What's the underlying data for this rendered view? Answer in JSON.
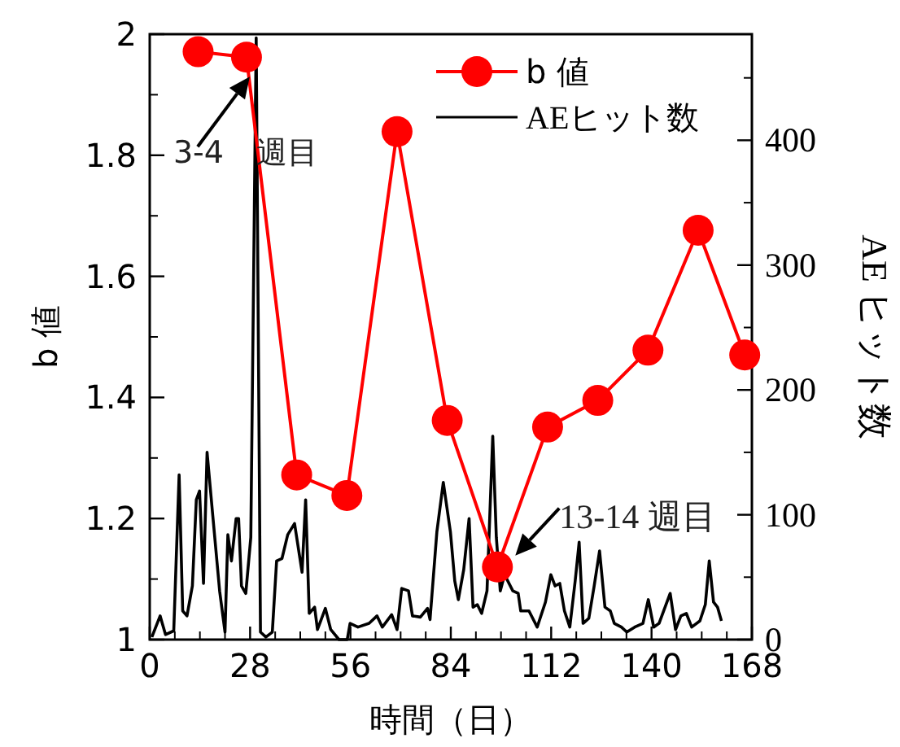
{
  "chart_data": {
    "type": "line",
    "xlabel": "時間（日）",
    "ylabel": "b 値",
    "y2label": "AE ヒット数",
    "xlim": [
      0,
      168
    ],
    "xticks": [
      0,
      28,
      56,
      84,
      112,
      140,
      168
    ],
    "ylim": [
      1,
      2
    ],
    "yticks": [
      {
        "value": 1,
        "label": "1"
      },
      1.2,
      1.4,
      1.6,
      1.8,
      {
        "value": 2,
        "label": "2"
      }
    ],
    "y2lim": [
      0,
      485
    ],
    "y2ticks": [
      0,
      100,
      200,
      300,
      400
    ],
    "legend": "top right",
    "annotations": [
      {
        "text": "3-4 週目",
        "x": 27,
        "y": 1.962
      },
      {
        "text": "13-14 週目",
        "x": 97,
        "y": 1.12
      }
    ],
    "series": [
      {
        "name": "b 値",
        "color": "#ff0000",
        "marker": "circle",
        "x": [
          13.5,
          27,
          41,
          55,
          69,
          83,
          97,
          111,
          125,
          139,
          153,
          166
        ],
        "values": [
          1.971,
          1.962,
          1.272,
          1.238,
          1.839,
          1.362,
          1.12,
          1.351,
          1.395,
          1.478,
          1.676,
          1.47
        ]
      },
      {
        "name": "AEヒット数",
        "color": "#000000",
        "axis": "y2",
        "marker": "none",
        "x": [
          0.6,
          2.9,
          4.4,
          6.7,
          8.2,
          9.2,
          10.4,
          11.9,
          13,
          13.9,
          15,
          16,
          17.6,
          19.5,
          21,
          21.8,
          22.8,
          24.1,
          24.8,
          25.6,
          26.8,
          28.2,
          29.7,
          30.9,
          32.4,
          34.2,
          35.4,
          36.9,
          38.5,
          40.4,
          42.5,
          43.5,
          44.5,
          46,
          46.8,
          49,
          50.5,
          52.8,
          55.1,
          55.9,
          58.1,
          61.2,
          63.4,
          64.9,
          67.5,
          69,
          70.3,
          72.2,
          73.3,
          75.5,
          77.5,
          78.2,
          80.1,
          81.9,
          83.9,
          85.1,
          86.1,
          87.6,
          89.1,
          90.2,
          91.4,
          92.6,
          94.1,
          95.7,
          96.7,
          97.8,
          99,
          101.3,
          102.8,
          103.5,
          105.8,
          108.1,
          110.4,
          111.9,
          113.1,
          114.4,
          115.7,
          117.2,
          118.7,
          119.8,
          120.9,
          122.5,
          124,
          125.5,
          127,
          128.5,
          129.6,
          131.6,
          133.1,
          135.3,
          137.6,
          139.1,
          140.6,
          142.1,
          145.2,
          146.7,
          148.2,
          149.7,
          151.2,
          153.5,
          155,
          156.1,
          157.3,
          158.4,
          159.5
        ],
        "values": [
          2,
          19,
          4,
          7,
          132,
          23,
          19,
          43,
          112,
          119,
          45,
          150,
          99,
          39,
          6,
          84,
          63,
          97,
          97,
          43,
          37,
          82,
          482,
          6,
          2,
          6,
          63,
          65,
          84,
          93,
          54,
          112,
          21,
          26,
          8,
          25,
          8,
          0,
          0,
          13,
          10,
          13,
          19,
          10,
          20,
          8,
          41,
          39,
          19,
          18,
          25,
          16,
          86,
          126,
          86,
          47,
          32,
          56,
          97,
          26,
          28,
          21,
          39,
          163,
          82,
          39,
          52,
          39,
          37,
          23,
          23,
          10,
          30,
          52,
          43,
          45,
          23,
          10,
          47,
          78,
          13,
          17,
          43,
          71,
          26,
          23,
          13,
          10,
          6,
          10,
          13,
          32,
          10,
          13,
          37,
          8,
          19,
          21,
          10,
          15,
          28,
          63,
          30,
          26,
          15
        ]
      }
    ]
  }
}
